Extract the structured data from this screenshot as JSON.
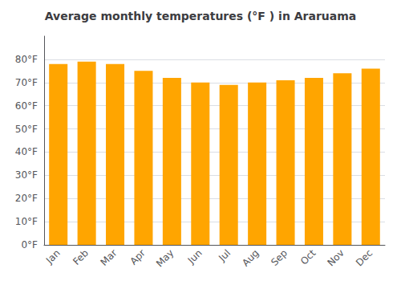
{
  "chart_data": {
    "type": "bar",
    "title": "Average monthly temperatures (°F ) in Araruama",
    "categories": [
      "Jan",
      "Feb",
      "Mar",
      "Apr",
      "May",
      "Jun",
      "Jul",
      "Aug",
      "Sep",
      "Oct",
      "Nov",
      "Dec"
    ],
    "values": [
      78,
      79,
      78,
      75,
      72,
      70,
      69,
      70,
      71,
      72,
      74,
      76
    ],
    "color": "#FFA500",
    "ylim": [
      0,
      90
    ],
    "yticks": [
      {
        "value": 0,
        "label": "0°F"
      },
      {
        "value": 10,
        "label": "10°F"
      },
      {
        "value": 20,
        "label": "20°F"
      },
      {
        "value": 30,
        "label": "30°F"
      },
      {
        "value": 40,
        "label": "40°F"
      },
      {
        "value": 50,
        "label": "50°F"
      },
      {
        "value": 60,
        "label": "60°F"
      },
      {
        "value": 70,
        "label": "70°F"
      },
      {
        "value": 80,
        "label": "80°F"
      }
    ],
    "grid": true
  }
}
